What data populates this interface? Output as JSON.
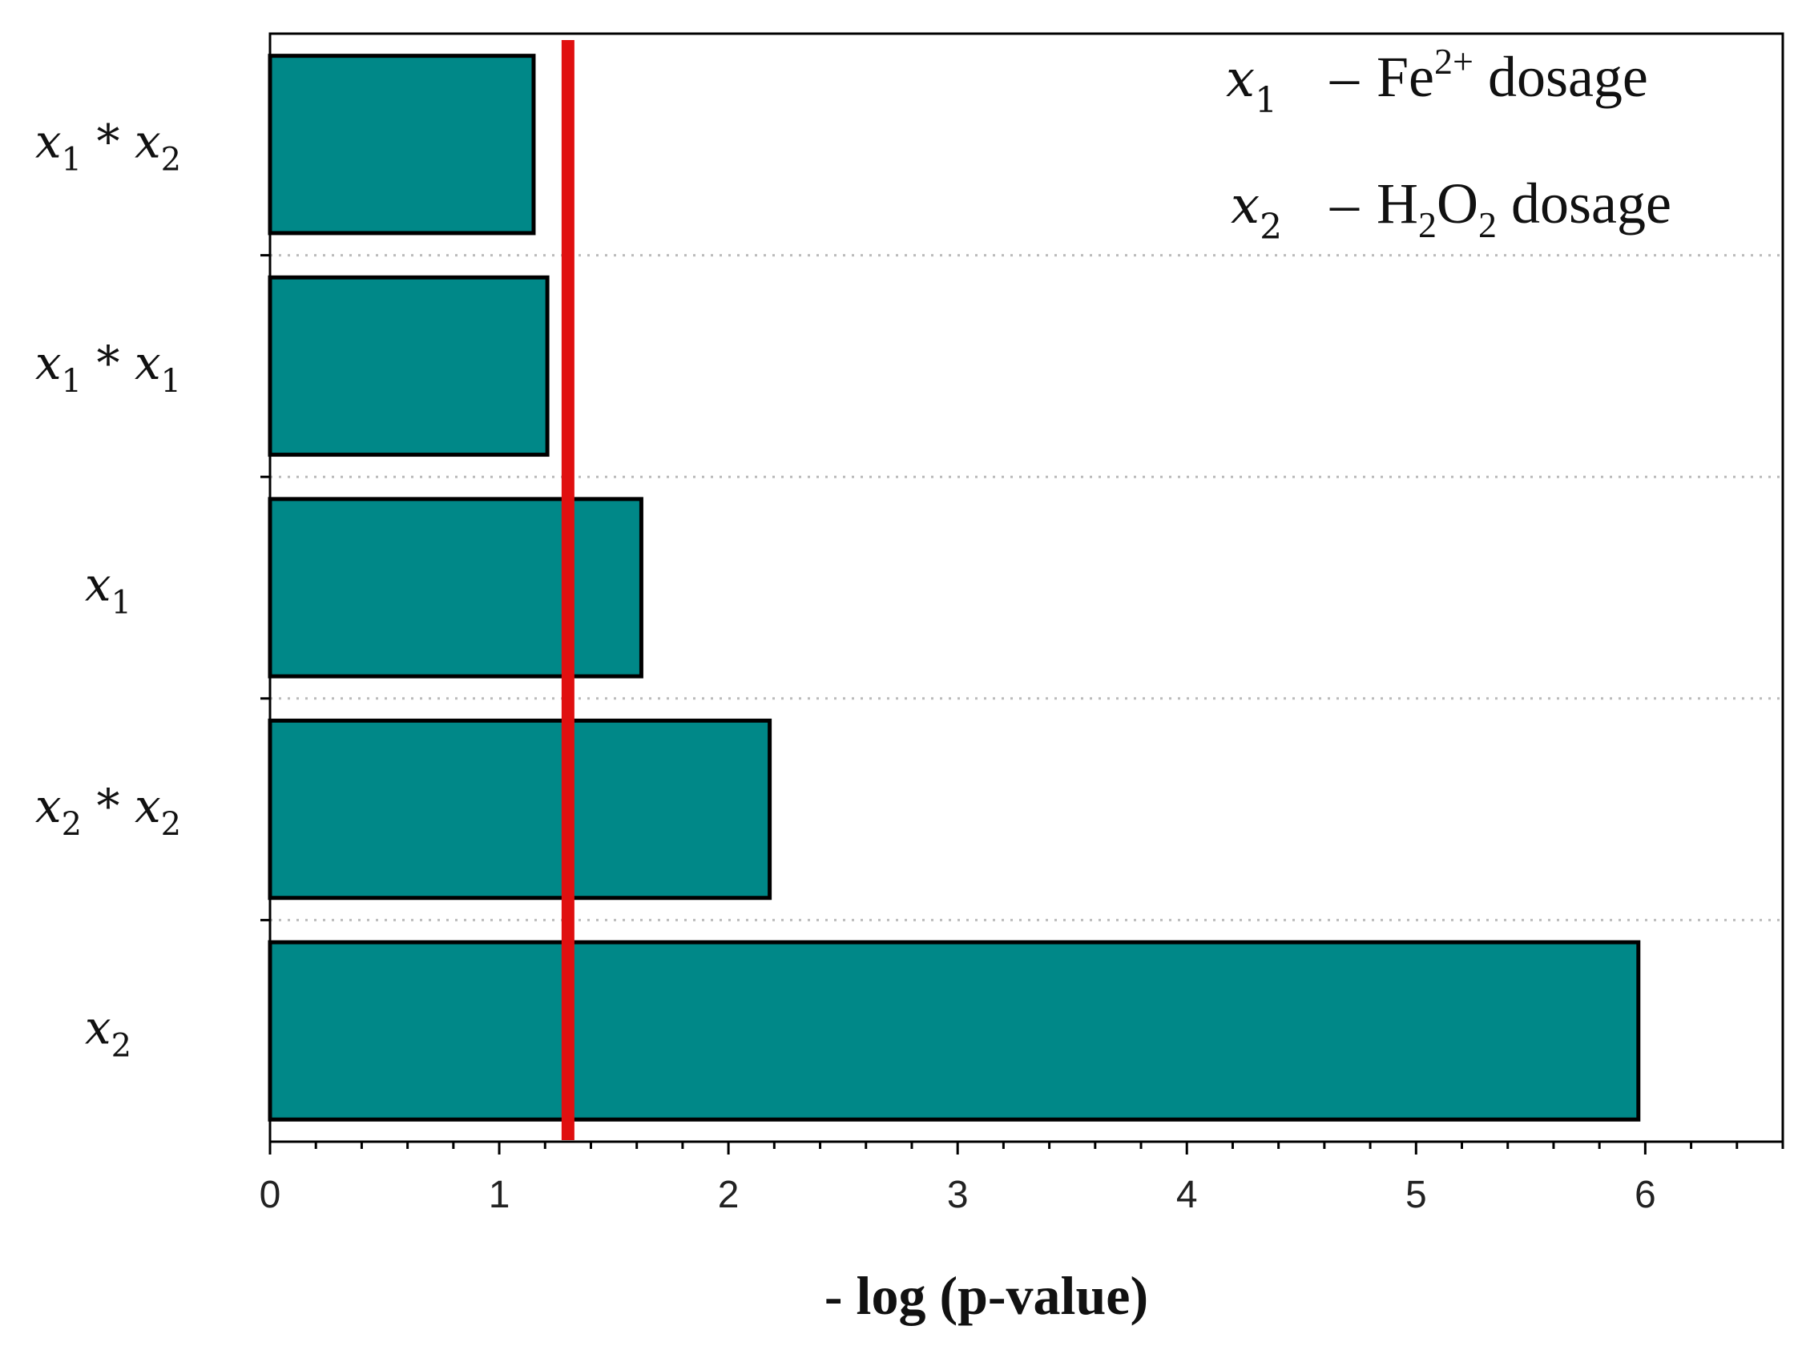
{
  "chart_data": {
    "type": "bar",
    "orientation": "horizontal",
    "categories": [
      {
        "var1": "x",
        "sub1": "1",
        "op": "*",
        "var2": "x",
        "sub2": "2"
      },
      {
        "var1": "x",
        "sub1": "1",
        "op": "*",
        "var2": "x",
        "sub2": "1"
      },
      {
        "var1": "x",
        "sub1": "1",
        "op": "",
        "var2": "",
        "sub2": ""
      },
      {
        "var1": "x",
        "sub1": "2",
        "op": "*",
        "var2": "x",
        "sub2": "2"
      },
      {
        "var1": "x",
        "sub1": "2",
        "op": "",
        "var2": "",
        "sub2": ""
      }
    ],
    "values": [
      1.15,
      1.21,
      1.62,
      2.18,
      5.97
    ],
    "xlabel": "- log (p-value)",
    "ylabel": "",
    "xlim": [
      0,
      6.6
    ],
    "xticks": [
      0,
      1,
      2,
      3,
      4,
      5,
      6
    ],
    "xtick_labels": [
      "0",
      "1",
      "2",
      "3",
      "4",
      "5",
      "6"
    ],
    "reference_line": {
      "x": 1.3
    },
    "grid": "dotted horizontal separators between categories",
    "colors": {
      "bar_fill": "#008888",
      "bar_edge": "#000000",
      "reference_line": "#e01010",
      "grid": "#bbbbbb"
    },
    "legend_position": "top-right",
    "legend_notes": [
      {
        "var": "x",
        "sub": "1",
        "dash": "–",
        "base": "Fe",
        "sup": "2+",
        "tail": " dosage"
      },
      {
        "var": "x",
        "sub": "2",
        "dash": "–",
        "base": "H",
        "sub_a": "2",
        "mid": "O",
        "sub_b": "2",
        "tail": " dosage"
      }
    ]
  }
}
